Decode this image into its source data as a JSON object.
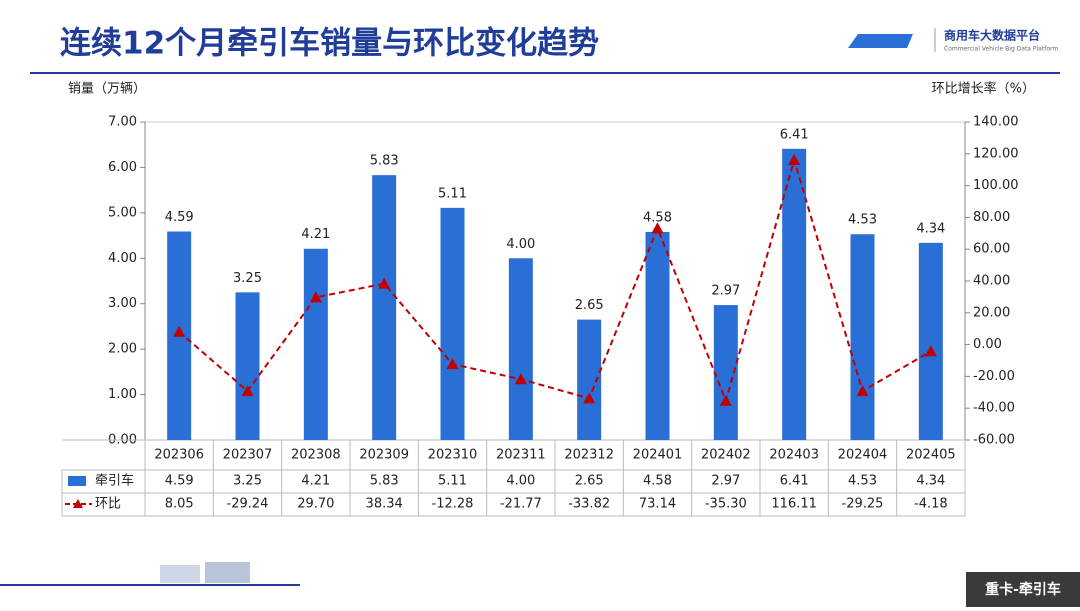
{
  "chart_data": {
    "type": "combo",
    "title": "连续12个月牵引车销量与环比变化趋势",
    "brand": "商用车大数据平台",
    "brand_subtitle": "Commercial Vehicle Big Data Platform",
    "tag": "重卡-牵引车",
    "y_label": "销量（万辆）",
    "y2_label": "环比增长率（%）",
    "categories": [
      "202306",
      "202307",
      "202308",
      "202309",
      "202310",
      "202311",
      "202312",
      "202401",
      "202402",
      "202403",
      "202404",
      "202405"
    ],
    "series": [
      {
        "name": "牵引车",
        "type": "bar",
        "color": "#2a6fd6",
        "values": [
          4.59,
          3.25,
          4.21,
          5.83,
          5.11,
          4.0,
          2.65,
          4.58,
          2.97,
          6.41,
          4.53,
          4.34
        ],
        "value_labels": [
          "4.59",
          "3.25",
          "4.21",
          "5.83",
          "5.11",
          "4.00",
          "2.65",
          "4.58",
          "2.97",
          "6.41",
          "4.53",
          "4.34"
        ]
      },
      {
        "name": "环比",
        "type": "line",
        "axis": "y2",
        "color": "#c00000",
        "values": [
          8.05,
          -29.24,
          29.7,
          38.34,
          -12.28,
          -21.77,
          -33.82,
          73.14,
          -35.3,
          116.11,
          -29.25,
          -4.18
        ],
        "value_labels": [
          "8.05",
          "-29.24",
          "29.70",
          "38.34",
          "-12.28",
          "-21.77",
          "-33.82",
          "73.14",
          "-35.30",
          "116.11",
          "-29.25",
          "-4.18"
        ]
      }
    ],
    "ylim": [
      0,
      7
    ],
    "yticks": [
      {
        "value": 0,
        "label": "0.00"
      },
      {
        "value": 1,
        "label": "1.00"
      },
      {
        "value": 2,
        "label": "2.00"
      },
      {
        "value": 3,
        "label": "3.00"
      },
      {
        "value": 4,
        "label": "4.00"
      },
      {
        "value": 5,
        "label": "5.00"
      },
      {
        "value": 6,
        "label": "6.00"
      },
      {
        "value": 7,
        "label": "7.00"
      }
    ],
    "y2lim": [
      -60,
      140
    ],
    "y2ticks": [
      {
        "value": -60,
        "label": "-60.00"
      },
      {
        "value": -40,
        "label": "-40.00"
      },
      {
        "value": -20,
        "label": "-20.00"
      },
      {
        "value": 0,
        "label": "0.00"
      },
      {
        "value": 20,
        "label": "20.00"
      },
      {
        "value": 40,
        "label": "40.00"
      },
      {
        "value": 60,
        "label": "60.00"
      },
      {
        "value": 80,
        "label": "80.00"
      },
      {
        "value": 100,
        "label": "100.00"
      },
      {
        "value": 120,
        "label": "120.00"
      },
      {
        "value": 140,
        "label": "140.00"
      }
    ]
  }
}
